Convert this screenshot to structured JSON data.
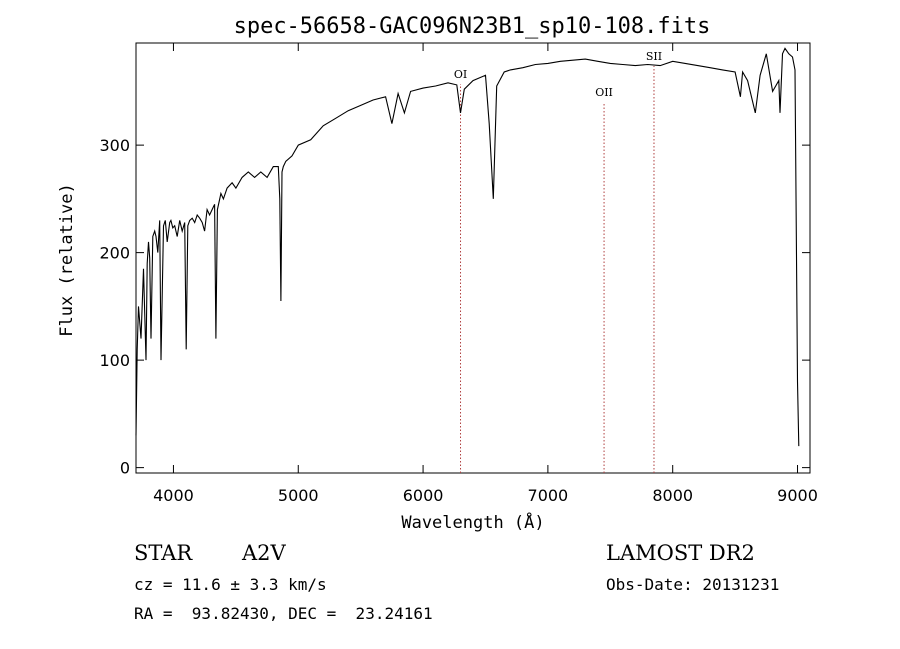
{
  "chart_data": {
    "type": "line",
    "title": "spec-56658-GAC096N23B1_sp10-108.fits",
    "xlabel": "Wavelength (Å)",
    "ylabel": "Flux (relative)",
    "xlim": [
      3700,
      9100
    ],
    "ylim": [
      -5,
      395
    ],
    "xticks": [
      4000,
      5000,
      6000,
      7000,
      8000,
      9000
    ],
    "yticks": [
      0,
      100,
      200,
      300
    ],
    "grid": false,
    "legend": "none",
    "series": [
      {
        "x": [
          3700,
          3710,
          3720,
          3740,
          3760,
          3780,
          3790,
          3800,
          3810,
          3820,
          3835,
          3850,
          3860,
          3875,
          3890,
          3900,
          3920,
          3935,
          3950,
          3970,
          3980,
          3995,
          4010,
          4030,
          4050,
          4070,
          4090,
          4102,
          4115,
          4130,
          4150,
          4170,
          4190,
          4210,
          4230,
          4250,
          4270,
          4290,
          4310,
          4330,
          4340,
          4352,
          4380,
          4400,
          4430,
          4470,
          4500,
          4550,
          4600,
          4650,
          4700,
          4750,
          4800,
          4840,
          4852,
          4861,
          4870,
          4880,
          4900,
          4950,
          5000,
          5100,
          5200,
          5300,
          5400,
          5500,
          5600,
          5700,
          5750,
          5800,
          5850,
          5900,
          6000,
          6100,
          6200,
          6270,
          6300,
          6330,
          6400,
          6500,
          6530,
          6563,
          6590,
          6650,
          6700,
          6800,
          6900,
          7000,
          7100,
          7200,
          7300,
          7400,
          7500,
          7600,
          7700,
          7800,
          7900,
          8000,
          8100,
          8200,
          8300,
          8400,
          8500,
          8542,
          8560,
          8600,
          8662,
          8700,
          8750,
          8800,
          8850,
          8860,
          8880,
          8900,
          8930,
          8960,
          8980,
          9000,
          9010
        ],
        "y": [
          30,
          110,
          150,
          120,
          185,
          100,
          190,
          210,
          195,
          120,
          215,
          220,
          215,
          200,
          230,
          100,
          225,
          230,
          210,
          228,
          230,
          223,
          225,
          215,
          230,
          220,
          228,
          110,
          225,
          230,
          232,
          228,
          235,
          232,
          228,
          220,
          240,
          235,
          240,
          245,
          120,
          240,
          255,
          250,
          260,
          265,
          260,
          270,
          275,
          270,
          275,
          270,
          280,
          280,
          250,
          155,
          275,
          280,
          285,
          290,
          300,
          305,
          318,
          325,
          332,
          337,
          342,
          345,
          320,
          348,
          330,
          350,
          353,
          355,
          358,
          356,
          330,
          352,
          360,
          365,
          320,
          250,
          355,
          368,
          370,
          372,
          375,
          376,
          378,
          379,
          380,
          378,
          376,
          375,
          374,
          375,
          374,
          378,
          376,
          374,
          372,
          370,
          368,
          345,
          368,
          360,
          330,
          365,
          385,
          350,
          360,
          330,
          385,
          390,
          385,
          382,
          370,
          80,
          20
        ]
      }
    ],
    "lines": [
      {
        "label": "OI",
        "x": 6300
      },
      {
        "label": "OII",
        "x": 7450
      },
      {
        "label": "SII",
        "x": 7850
      }
    ],
    "info": {
      "type_label": "STAR",
      "subclass": "A2V",
      "cz": "cz = 11.6 ± 3.3 km/s",
      "coords": "RA =  93.82430, DEC =  23.24161",
      "survey": "LAMOST DR2",
      "obs_date": "Obs-Date: 20131231"
    }
  }
}
